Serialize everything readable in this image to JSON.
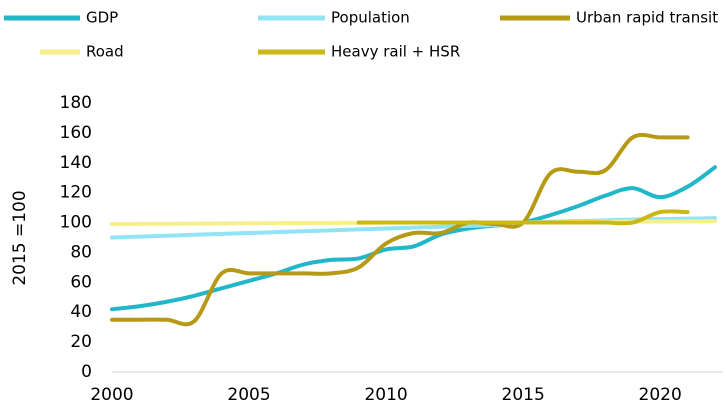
{
  "chart_data": {
    "type": "line",
    "ylabel": "2015 =100",
    "x": [
      2000,
      2001,
      2002,
      2003,
      2004,
      2005,
      2006,
      2007,
      2008,
      2009,
      2010,
      2011,
      2012,
      2013,
      2014,
      2015,
      2016,
      2017,
      2018,
      2019,
      2020,
      2021,
      2022
    ],
    "xlim": [
      2000,
      2022
    ],
    "xticks": [
      2000,
      2005,
      2010,
      2015,
      2020
    ],
    "ylim": [
      0,
      180
    ],
    "yticks": [
      0,
      20,
      40,
      60,
      80,
      100,
      120,
      140,
      160,
      180
    ],
    "grid": false,
    "legend": "top",
    "series": [
      {
        "name": "GDP",
        "color": "#22b6c9",
        "values": [
          42,
          44,
          47,
          51,
          56,
          61,
          66,
          72,
          75,
          76,
          82,
          84,
          92,
          96,
          98,
          100,
          105,
          111,
          118,
          123,
          117,
          124,
          137
        ]
      },
      {
        "name": "Population",
        "color": "#90e4f3",
        "values": [
          90,
          90.6,
          91.2,
          91.8,
          92.4,
          93,
          93.6,
          94.2,
          94.8,
          95.4,
          96,
          96.6,
          97.2,
          97.8,
          98.4,
          100,
          100.5,
          101,
          101.5,
          102,
          102.3,
          102.6,
          103
        ]
      },
      {
        "name": "Urban rapid transit",
        "color": "#b69a16",
        "values": [
          35,
          35,
          35,
          34,
          66,
          66,
          66,
          66,
          66,
          70,
          86,
          93,
          93,
          100,
          99,
          100,
          133,
          134,
          135,
          157,
          157,
          157,
          null
        ]
      },
      {
        "name": "Road",
        "color": "#f6ef8c",
        "values": [
          99,
          99.1,
          99.2,
          99.3,
          99.4,
          99.5,
          99.6,
          99.7,
          99.8,
          99.9,
          100,
          100,
          100,
          100,
          100,
          100,
          100.2,
          100.4,
          100.5,
          100.6,
          100.7,
          100.8,
          101
        ]
      },
      {
        "name": "Heavy rail + HSR",
        "color": "#cbb815",
        "values": [
          null,
          null,
          null,
          null,
          null,
          null,
          null,
          null,
          null,
          100,
          100,
          100,
          100,
          100,
          100,
          100,
          100,
          100,
          100,
          100,
          107,
          107,
          null
        ]
      }
    ]
  }
}
